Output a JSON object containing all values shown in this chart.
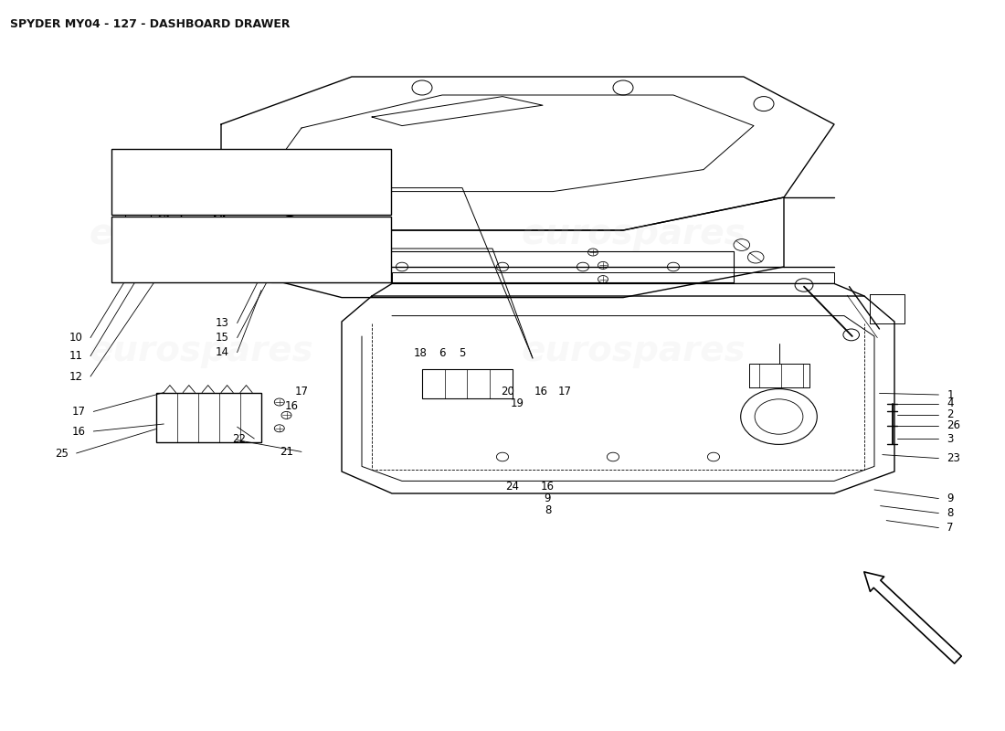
{
  "title": "SPYDER MY04 - 127 - DASHBOARD DRAWER",
  "background_color": "#ffffff",
  "watermark_text": "eurospares",
  "watermark_color": "#cccccc",
  "line_color": "#000000",
  "title_fontsize": 9,
  "label_fontsize": 8.5,
  "watermark_fontsize": 28
}
